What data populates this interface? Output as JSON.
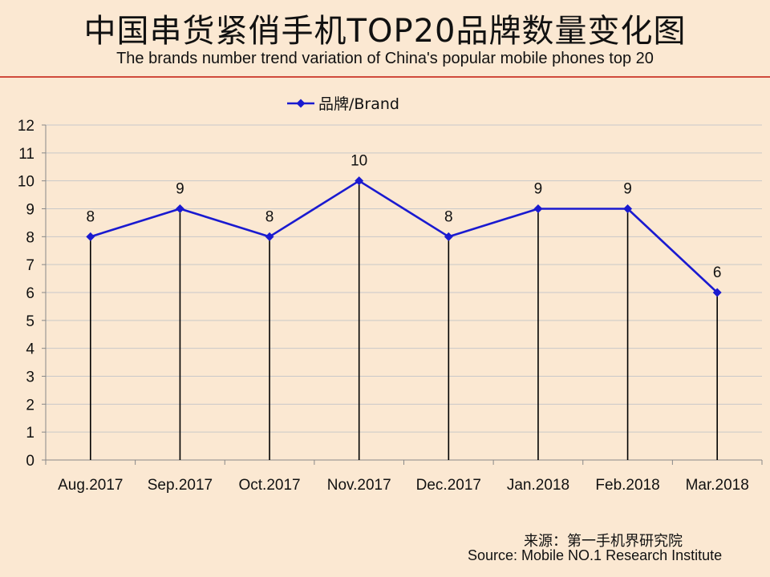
{
  "header": {
    "title": "中国串货紧俏手机TOP20品牌数量变化图",
    "subtitle": "The brands number trend variation of China's popular mobile phones top 20"
  },
  "footer": {
    "source_cn": "来源：第一手机界研究院",
    "source_en": "Source: Mobile NO.1 Research Institute"
  },
  "chart_data": {
    "type": "line",
    "categories": [
      "Aug.2017",
      "Sep.2017",
      "Oct.2017",
      "Nov.2017",
      "Dec.2017",
      "Jan.2018",
      "Feb.2018",
      "Mar.2018"
    ],
    "series": [
      {
        "name": "品牌/Brand",
        "values": [
          8,
          9,
          8,
          10,
          8,
          9,
          9,
          6
        ],
        "color": "#1a1ad0"
      }
    ],
    "ylim": [
      0,
      12
    ],
    "yticks": [
      0,
      1,
      2,
      3,
      4,
      5,
      6,
      7,
      8,
      9,
      10,
      11,
      12
    ],
    "data_labels": true,
    "drop_lines": true,
    "grid": true,
    "legend_position": "top-left"
  }
}
